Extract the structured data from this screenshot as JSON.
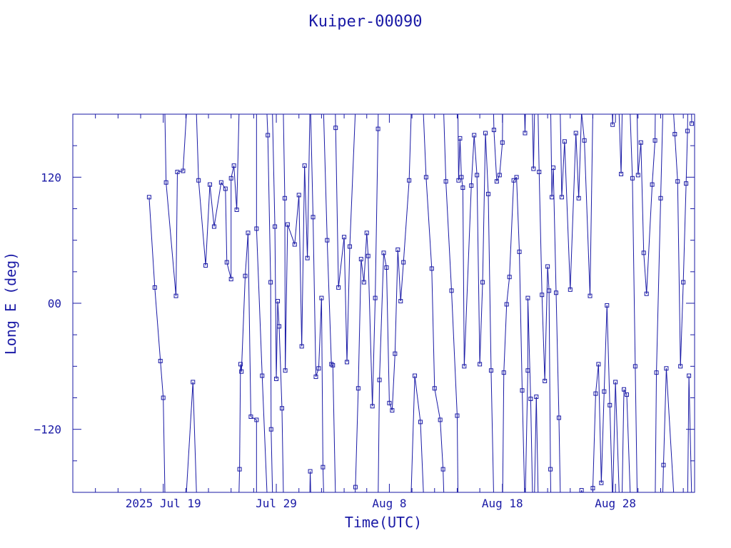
{
  "chart_data": {
    "type": "line",
    "title": "Kuiper-00090",
    "xlabel": "Time(UTC)",
    "ylabel": "Long E (deg)",
    "xlim": [
      "2025-07-11",
      "2025-09-04"
    ],
    "ylim": [
      -180,
      180
    ],
    "wrap_range": [
      -180,
      180
    ],
    "grid": false,
    "legend": "none",
    "colors": {
      "axes": "#1a1aa6",
      "line": "#1a1aa6",
      "marker": "#1a1aa6"
    },
    "x_ticks": [
      {
        "date": "2025-07-19",
        "label": "2025 Jul 19"
      },
      {
        "date": "2025-07-29",
        "label": "Jul 29"
      },
      {
        "date": "2025-08-08",
        "label": "Aug  8"
      },
      {
        "date": "2025-08-18",
        "label": "Aug 18"
      },
      {
        "date": "2025-08-28",
        "label": "Aug 28"
      }
    ],
    "y_ticks": [
      {
        "value": 120,
        "label": "120"
      },
      {
        "value": 0,
        "label": "00"
      },
      {
        "value": -120,
        "label": "−120"
      }
    ],
    "series": [
      {
        "points": [
          [
            "2025-07-17T18:00",
            101
          ],
          [
            "2025-07-18T06:00",
            15
          ],
          [
            "2025-07-18T18:00",
            -55
          ],
          [
            "2025-07-19T00:00",
            -90
          ],
          [
            "2025-07-19T06:00",
            115
          ],
          [
            "2025-07-20T03:00",
            7
          ],
          [
            "2025-07-20T06:00",
            125
          ],
          [
            "2025-07-20T18:00",
            126
          ],
          [
            "2025-07-21T15:00",
            -75
          ],
          [
            "2025-07-22T03:00",
            117
          ],
          [
            "2025-07-22T18:00",
            36
          ],
          [
            "2025-07-23T03:00",
            113
          ],
          [
            "2025-07-23T12:00",
            73
          ],
          [
            "2025-07-24T03:00",
            115
          ],
          [
            "2025-07-24T12:00",
            109
          ],
          [
            "2025-07-24T15:00",
            39
          ],
          [
            "2025-07-25T00:00",
            23
          ],
          [
            "2025-07-25T00:01",
            119
          ],
          [
            "2025-07-25T06:00",
            131
          ],
          [
            "2025-07-25T12:00",
            89
          ],
          [
            "2025-07-25T18:00",
            -158
          ],
          [
            "2025-07-25T20:00",
            -58
          ],
          [
            "2025-07-25T22:00",
            -65
          ],
          [
            "2025-07-26T06:00",
            26
          ],
          [
            "2025-07-26T12:00",
            67
          ],
          [
            "2025-07-26T18:00",
            -108
          ],
          [
            "2025-07-27T06:00",
            -111
          ],
          [
            "2025-07-27T06:01",
            71
          ],
          [
            "2025-07-27T18:00",
            -69
          ],
          [
            "2025-07-28T06:00",
            160
          ],
          [
            "2025-07-28T12:00",
            20
          ],
          [
            "2025-07-28T13:00",
            -120
          ],
          [
            "2025-07-28T21:00",
            73
          ],
          [
            "2025-07-29T00:00",
            -72
          ],
          [
            "2025-07-29T03:00",
            2
          ],
          [
            "2025-07-29T06:00",
            -22
          ],
          [
            "2025-07-29T12:00",
            -100
          ],
          [
            "2025-07-29T18:00",
            100
          ],
          [
            "2025-07-29T19:00",
            -64
          ],
          [
            "2025-07-30T00:00",
            75
          ],
          [
            "2025-07-30T15:00",
            56
          ],
          [
            "2025-07-31T00:00",
            103
          ],
          [
            "2025-07-31T06:00",
            -41
          ],
          [
            "2025-07-31T12:00",
            131
          ],
          [
            "2025-07-31T18:00",
            43
          ],
          [
            "2025-08-01T00:00",
            -160
          ],
          [
            "2025-08-01T06:00",
            82
          ],
          [
            "2025-08-01T12:00",
            -70
          ],
          [
            "2025-08-01T18:00",
            -62
          ],
          [
            "2025-08-02T00:00",
            5
          ],
          [
            "2025-08-02T03:00",
            -156
          ],
          [
            "2025-08-02T12:00",
            60
          ],
          [
            "2025-08-02T21:00",
            -58
          ],
          [
            "2025-08-03T00:00",
            -59
          ],
          [
            "2025-08-03T06:00",
            167
          ],
          [
            "2025-08-03T12:00",
            15
          ],
          [
            "2025-08-04T00:00",
            63
          ],
          [
            "2025-08-04T06:00",
            -56
          ],
          [
            "2025-08-04T12:00",
            54
          ],
          [
            "2025-08-05T00:00",
            -175
          ],
          [
            "2025-08-05T06:00",
            -81
          ],
          [
            "2025-08-05T12:00",
            42
          ],
          [
            "2025-08-05T18:00",
            20
          ],
          [
            "2025-08-06T00:00",
            67
          ],
          [
            "2025-08-06T03:00",
            45
          ],
          [
            "2025-08-06T12:00",
            -98
          ],
          [
            "2025-08-06T18:00",
            5
          ],
          [
            "2025-08-07T00:00",
            166
          ],
          [
            "2025-08-07T03:00",
            -73
          ],
          [
            "2025-08-07T12:00",
            48
          ],
          [
            "2025-08-07T18:00",
            34
          ],
          [
            "2025-08-08T00:00",
            -95
          ],
          [
            "2025-08-08T06:00",
            -102
          ],
          [
            "2025-08-08T12:00",
            -48
          ],
          [
            "2025-08-08T18:00",
            51
          ],
          [
            "2025-08-09T00:00",
            2
          ],
          [
            "2025-08-09T06:00",
            39
          ],
          [
            "2025-08-09T18:00",
            117
          ],
          [
            "2025-08-10T06:00",
            -69
          ],
          [
            "2025-08-10T18:00",
            -113
          ],
          [
            "2025-08-11T06:00",
            120
          ],
          [
            "2025-08-11T18:00",
            33
          ],
          [
            "2025-08-12T00:00",
            -81
          ],
          [
            "2025-08-12T12:00",
            -111
          ],
          [
            "2025-08-12T18:00",
            -158
          ],
          [
            "2025-08-13T00:00",
            116
          ],
          [
            "2025-08-13T12:00",
            12
          ],
          [
            "2025-08-14T00:00",
            -107
          ],
          [
            "2025-08-14T03:00",
            117
          ],
          [
            "2025-08-14T06:00",
            157
          ],
          [
            "2025-08-14T09:00",
            120
          ],
          [
            "2025-08-14T12:00",
            110
          ],
          [
            "2025-08-14T15:00",
            -60
          ],
          [
            "2025-08-15T06:00",
            112
          ],
          [
            "2025-08-15T12:00",
            160
          ],
          [
            "2025-08-15T18:00",
            122
          ],
          [
            "2025-08-16T00:00",
            -58
          ],
          [
            "2025-08-16T06:00",
            20
          ],
          [
            "2025-08-16T12:00",
            162
          ],
          [
            "2025-08-16T18:00",
            104
          ],
          [
            "2025-08-17T00:00",
            -64
          ],
          [
            "2025-08-17T06:00",
            165
          ],
          [
            "2025-08-17T12:00",
            116
          ],
          [
            "2025-08-17T18:00",
            122
          ],
          [
            "2025-08-18T00:00",
            153
          ],
          [
            "2025-08-18T03:00",
            -66
          ],
          [
            "2025-08-18T09:00",
            -1
          ],
          [
            "2025-08-18T15:00",
            25
          ],
          [
            "2025-08-19T00:00",
            117
          ],
          [
            "2025-08-19T06:00",
            120
          ],
          [
            "2025-08-19T12:00",
            49
          ],
          [
            "2025-08-19T18:00",
            -83
          ],
          [
            "2025-08-20T00:00",
            162
          ],
          [
            "2025-08-20T06:00",
            -64
          ],
          [
            "2025-08-20T06:01",
            5
          ],
          [
            "2025-08-20T12:00",
            -91
          ],
          [
            "2025-08-20T18:00",
            128
          ],
          [
            "2025-08-21T00:00",
            -89
          ],
          [
            "2025-08-21T06:00",
            125
          ],
          [
            "2025-08-21T12:00",
            8
          ],
          [
            "2025-08-21T18:00",
            -74
          ],
          [
            "2025-08-22T00:00",
            35
          ],
          [
            "2025-08-22T03:00",
            12
          ],
          [
            "2025-08-22T06:00",
            -158
          ],
          [
            "2025-08-22T09:00",
            101
          ],
          [
            "2025-08-22T12:00",
            129
          ],
          [
            "2025-08-22T18:00",
            10
          ],
          [
            "2025-08-23T00:00",
            -109
          ],
          [
            "2025-08-23T06:00",
            101
          ],
          [
            "2025-08-23T12:00",
            154
          ],
          [
            "2025-08-24T00:00",
            13
          ],
          [
            "2025-08-24T12:00",
            162
          ],
          [
            "2025-08-24T18:00",
            100
          ],
          [
            "2025-08-25T00:00",
            -178
          ],
          [
            "2025-08-25T06:00",
            155
          ],
          [
            "2025-08-25T18:00",
            7
          ],
          [
            "2025-08-26T00:00",
            -176
          ],
          [
            "2025-08-26T06:00",
            -86
          ],
          [
            "2025-08-26T12:00",
            -58
          ],
          [
            "2025-08-26T18:00",
            -171
          ],
          [
            "2025-08-27T00:00",
            -84
          ],
          [
            "2025-08-27T06:00",
            -2
          ],
          [
            "2025-08-27T12:00",
            -97
          ],
          [
            "2025-08-27T18:00",
            170
          ],
          [
            "2025-08-28T00:00",
            -75
          ],
          [
            "2025-08-28T12:00",
            123
          ],
          [
            "2025-08-28T18:00",
            -82
          ],
          [
            "2025-08-29T00:00",
            -87
          ],
          [
            "2025-08-29T12:00",
            119
          ],
          [
            "2025-08-29T18:00",
            -60
          ],
          [
            "2025-08-30T00:00",
            122
          ],
          [
            "2025-08-30T06:00",
            153
          ],
          [
            "2025-08-30T12:00",
            48
          ],
          [
            "2025-08-30T18:00",
            9
          ],
          [
            "2025-08-31T06:00",
            113
          ],
          [
            "2025-08-31T12:00",
            155
          ],
          [
            "2025-08-31T15:00",
            -66
          ],
          [
            "2025-09-01T00:00",
            100
          ],
          [
            "2025-09-01T06:00",
            -154
          ],
          [
            "2025-09-01T12:00",
            -62
          ],
          [
            "2025-09-02T06:00",
            161
          ],
          [
            "2025-09-02T12:00",
            116
          ],
          [
            "2025-09-02T18:00",
            -60
          ],
          [
            "2025-09-03T00:00",
            20
          ],
          [
            "2025-09-03T06:00",
            114
          ],
          [
            "2025-09-03T09:00",
            164
          ],
          [
            "2025-09-03T12:00",
            -69
          ],
          [
            "2025-09-03T18:00",
            171
          ]
        ]
      }
    ]
  }
}
